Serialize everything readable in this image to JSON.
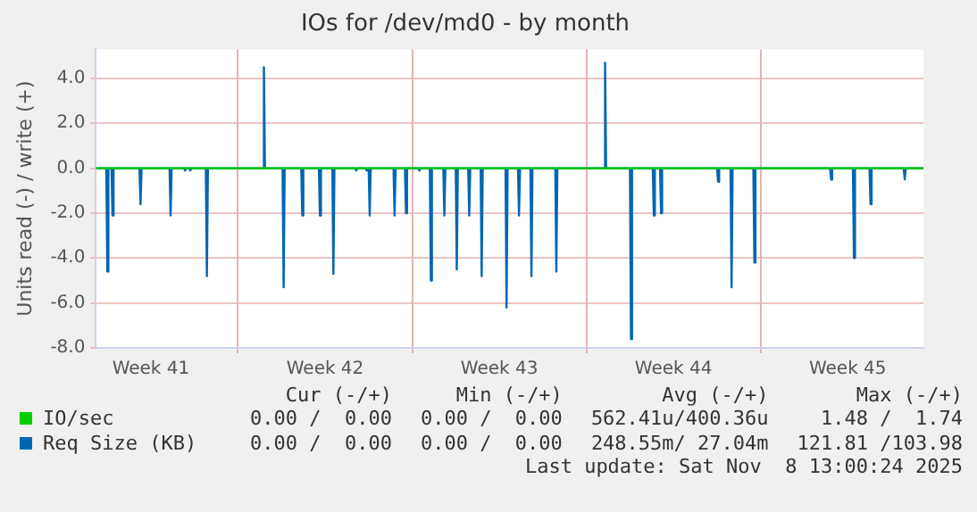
{
  "chart_data": {
    "type": "line",
    "title": "IOs for /dev/md0 - by month",
    "ylabel": "Units read (-) / write (+)",
    "xlim": [
      "2025-10-06T07:00",
      "2025-11-08T13:00"
    ],
    "ylim": [
      -8,
      5.3
    ],
    "xticks": [
      {
        "value": "2025-10-08T12:00",
        "label": "Week 41"
      },
      {
        "value": "2025-10-12",
        "label": null
      },
      {
        "value": "2025-10-15T12:00",
        "label": "Week 42"
      },
      {
        "value": "2025-10-19",
        "label": null
      },
      {
        "value": "2025-10-22T12:00",
        "label": "Week 43"
      },
      {
        "value": "2025-10-26",
        "label": null
      },
      {
        "value": "2025-10-29T12:00",
        "label": "Week 44"
      },
      {
        "value": "2025-11-02",
        "label": null
      },
      {
        "value": "2025-11-05T12:00",
        "label": "Week 45"
      }
    ],
    "yticks": [
      {
        "value": -8,
        "label": "-8.0"
      },
      {
        "value": -6,
        "label": "-6.0"
      },
      {
        "value": -4,
        "label": "-4.0"
      },
      {
        "value": -2,
        "label": "-2.0"
      },
      {
        "value": 0,
        "label": "0.0"
      },
      {
        "value": 2,
        "label": "2.0"
      },
      {
        "value": 4,
        "label": "4.0"
      }
    ],
    "grid": true,
    "legend": "bottom",
    "marker": "none",
    "line_style": "solid",
    "series": [
      {
        "name": "IO/sec",
        "color": "#00cc00",
        "x": [
          "2025-10-06T07:00",
          "2025-11-08T13:00"
        ],
        "values": [
          0,
          0
        ]
      },
      {
        "name": "Req Size (KB)",
        "color": "#0066b3",
        "x": [
          "2025-10-06T07:00",
          "2025-10-06T17:00",
          "2025-10-06T18:00",
          "2025-10-06T19:00",
          "2025-10-06T22:00",
          "2025-10-06T23:00",
          "2025-10-07T00:00",
          "2025-10-08T01:00",
          "2025-10-08T02:00",
          "2025-10-08T03:00",
          "2025-10-09T06:00",
          "2025-10-09T07:00",
          "2025-10-09T08:00",
          "2025-10-09T20:00",
          "2025-10-09T21:00",
          "2025-10-09T22:00",
          "2025-10-10T01:00",
          "2025-10-10T02:00",
          "2025-10-10T03:00",
          "2025-10-10T17:00",
          "2025-10-10T18:00",
          "2025-10-10T19:00",
          "2025-10-13T00:00",
          "2025-10-13T01:00",
          "2025-10-13T02:00",
          "2025-10-13T19:00",
          "2025-10-13T20:00",
          "2025-10-13T21:00",
          "2025-10-14T13:00",
          "2025-10-14T14:00",
          "2025-10-14T15:00",
          "2025-10-15T06:00",
          "2025-10-15T07:00",
          "2025-10-15T08:00",
          "2025-10-15T19:00",
          "2025-10-15T20:00",
          "2025-10-15T21:00",
          "2025-10-16T17:00",
          "2025-10-16T18:00",
          "2025-10-16T19:00",
          "2025-10-17T03:00",
          "2025-10-17T04:00",
          "2025-10-17T05:00",
          "2025-10-17T06:00",
          "2025-10-17T07:00",
          "2025-10-17T08:00",
          "2025-10-18T06:00",
          "2025-10-18T07:00",
          "2025-10-18T08:00",
          "2025-10-18T17:00",
          "2025-10-18T18:00",
          "2025-10-18T19:00",
          "2025-10-19T06:00",
          "2025-10-19T07:00",
          "2025-10-19T08:00",
          "2025-10-19T17:00",
          "2025-10-19T18:00",
          "2025-10-19T19:00",
          "2025-10-20T06:00",
          "2025-10-20T07:00",
          "2025-10-20T08:00",
          "2025-10-20T18:00",
          "2025-10-20T19:00",
          "2025-10-20T20:00",
          "2025-10-21T06:00",
          "2025-10-21T07:00",
          "2025-10-21T08:00",
          "2025-10-21T18:00",
          "2025-10-21T19:00",
          "2025-10-21T20:00",
          "2025-10-22T18:00",
          "2025-10-22T19:00",
          "2025-10-22T20:00",
          "2025-10-23T06:00",
          "2025-10-23T07:00",
          "2025-10-23T08:00",
          "2025-10-23T18:00",
          "2025-10-23T19:00",
          "2025-10-23T20:00",
          "2025-10-24T18:00",
          "2025-10-24T19:00",
          "2025-10-24T20:00",
          "2025-10-26T17:00",
          "2025-10-26T18:00",
          "2025-10-26T19:00",
          "2025-10-27T18:00",
          "2025-10-27T19:00",
          "2025-10-27T20:00",
          "2025-10-28T16:00",
          "2025-10-28T17:00",
          "2025-10-28T18:00",
          "2025-10-28T23:00",
          "2025-10-29T00:00",
          "2025-10-29T01:00",
          "2025-10-31T06:00",
          "2025-10-31T07:00",
          "2025-10-31T08:00",
          "2025-10-31T19:00",
          "2025-10-31T20:00",
          "2025-10-31T21:00",
          "2025-11-01T17:00",
          "2025-11-01T18:00",
          "2025-11-01T19:00",
          "2025-11-04T19:00",
          "2025-11-04T20:00",
          "2025-11-04T21:00",
          "2025-11-05T17:00",
          "2025-11-05T18:00",
          "2025-11-05T19:00",
          "2025-11-06T09:00",
          "2025-11-06T10:00",
          "2025-11-06T11:00",
          "2025-11-07T18:00",
          "2025-11-07T19:00",
          "2025-11-07T20:00",
          "2025-11-08T13:00"
        ],
        "values": [
          0,
          0,
          -4.6,
          0,
          0,
          -2.1,
          0,
          0,
          -1.6,
          0,
          0,
          -2.1,
          0,
          0,
          -0.1,
          0,
          0,
          -0.1,
          0,
          0,
          -4.8,
          0,
          0,
          4.5,
          0,
          0,
          -5.3,
          0,
          0,
          -2.1,
          0,
          0,
          -2.1,
          0,
          0,
          -4.7,
          0,
          0,
          -0.1,
          0,
          0,
          -0.1,
          0,
          0,
          -2.1,
          0,
          0,
          -2.1,
          0,
          0,
          -2.0,
          0,
          0,
          -0.1,
          0,
          0,
          -5.0,
          0,
          0,
          -2.1,
          0,
          0,
          -4.5,
          0,
          0,
          -2.1,
          0,
          0,
          -4.8,
          0,
          0,
          -6.2,
          0,
          0,
          -2.1,
          0,
          0,
          -4.8,
          0,
          0,
          -4.6,
          0,
          0,
          4.7,
          0,
          0,
          -7.6,
          0,
          0,
          -2.1,
          0,
          0,
          -2.0,
          0,
          0,
          -0.6,
          0,
          0,
          -5.3,
          0,
          0,
          -4.2,
          0,
          0,
          -0.5,
          0,
          0,
          -4.0,
          0,
          0,
          -1.6,
          0,
          0,
          -0.5,
          0,
          0
        ]
      }
    ],
    "annotations": [
      "Cur (-/+)",
      "Min (-/+)",
      "Avg (-/+)",
      "Max (-/+)",
      "0.00 /  0.00",
      "0.00 /  0.00",
      "562.41u/400.36u",
      "1.48 /  1.74",
      "0.00 /  0.00",
      "0.00 /  0.00",
      "248.55m/ 27.04m",
      "121.81 /103.98",
      "Last update: Sat Nov  8 13:00:24 2025"
    ]
  }
}
